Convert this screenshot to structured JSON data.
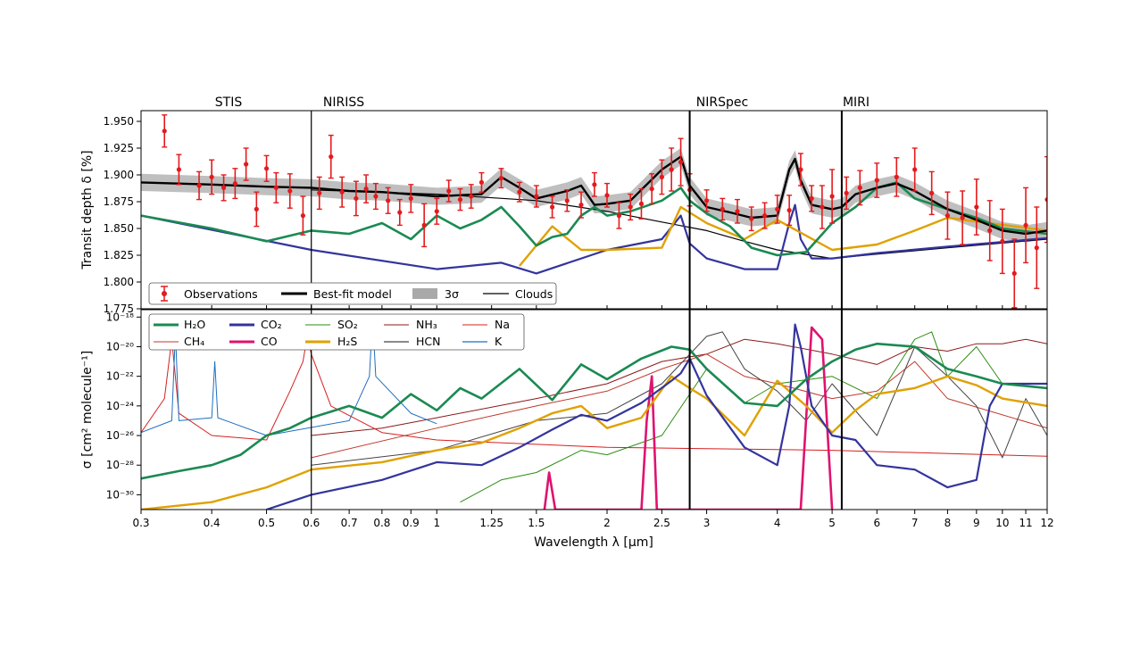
{
  "figure": {
    "instruments": [
      "STIS",
      "NIRISS",
      "NIRSpec",
      "MIRI"
    ],
    "xlabel": "Wavelength λ [µm]"
  },
  "chart_data": [
    {
      "type": "line",
      "panel": "top",
      "ylabel": "Transit depth δ [%]",
      "xscale": "log",
      "xlim": [
        0.3,
        12
      ],
      "ylim": [
        1.775,
        1.96
      ],
      "yticks": [
        "1.775",
        "1.800",
        "1.825",
        "1.850",
        "1.875",
        "1.900",
        "1.925",
        "1.950"
      ],
      "instrument_boundaries": [
        0.6,
        2.8,
        5.2
      ],
      "legend": {
        "position": "bottom-left",
        "entries": [
          "Observations",
          "Best-fit model",
          "3σ",
          "Clouds"
        ]
      },
      "colors": {
        "Observations": "#e41a1c",
        "Best-fit model": "#000000",
        "3σ": "#a9a9a9",
        "Clouds": "#000000",
        "H2O": "#1a8a52",
        "CO2": "#34349e",
        "SO2": "#2e8b12",
        "H2S": "#e0a100",
        "Na": "#d62020",
        "CH4": "#c0392b",
        "NH3": "#8b1a1a",
        "HCN": "#444444",
        "K": "#1f6fbf",
        "CO": "#e0126e"
      },
      "observations": {
        "x": [
          0.33,
          0.35,
          0.38,
          0.4,
          0.42,
          0.44,
          0.46,
          0.48,
          0.5,
          0.52,
          0.55,
          0.58,
          0.62,
          0.65,
          0.68,
          0.72,
          0.75,
          0.78,
          0.82,
          0.86,
          0.9,
          0.95,
          1.0,
          1.05,
          1.1,
          1.15,
          1.2,
          1.3,
          1.4,
          1.5,
          1.6,
          1.7,
          1.8,
          1.9,
          2.0,
          2.1,
          2.2,
          2.3,
          2.4,
          2.5,
          2.6,
          2.7,
          2.8,
          3.0,
          3.2,
          3.4,
          3.6,
          3.8,
          4.0,
          4.2,
          4.4,
          4.6,
          4.8,
          5.0,
          5.3,
          5.6,
          6.0,
          6.5,
          7.0,
          7.5,
          8.0,
          8.5,
          9.0,
          9.5,
          10.0,
          10.5,
          11.0,
          11.5,
          12.0
        ],
        "y": [
          1.941,
          1.905,
          1.89,
          1.898,
          1.888,
          1.892,
          1.91,
          1.868,
          1.906,
          1.888,
          1.885,
          1.862,
          1.883,
          1.917,
          1.884,
          1.878,
          1.887,
          1.88,
          1.876,
          1.865,
          1.878,
          1.853,
          1.866,
          1.885,
          1.877,
          1.88,
          1.893,
          1.897,
          1.884,
          1.88,
          1.87,
          1.876,
          1.872,
          1.891,
          1.881,
          1.862,
          1.87,
          1.873,
          1.887,
          1.898,
          1.905,
          1.912,
          1.886,
          1.876,
          1.868,
          1.866,
          1.859,
          1.862,
          1.868,
          1.867,
          1.905,
          1.878,
          1.87,
          1.88,
          1.883,
          1.888,
          1.895,
          1.898,
          1.905,
          1.883,
          1.862,
          1.86,
          1.87,
          1.848,
          1.838,
          1.808,
          1.853,
          1.832,
          1.877
        ],
        "yerr": [
          0.015,
          0.014,
          0.013,
          0.016,
          0.012,
          0.014,
          0.015,
          0.016,
          0.012,
          0.014,
          0.016,
          0.018,
          0.015,
          0.02,
          0.014,
          0.016,
          0.013,
          0.012,
          0.012,
          0.012,
          0.013,
          0.02,
          0.012,
          0.01,
          0.01,
          0.011,
          0.009,
          0.009,
          0.009,
          0.01,
          0.01,
          0.01,
          0.012,
          0.011,
          0.011,
          0.012,
          0.012,
          0.014,
          0.014,
          0.016,
          0.02,
          0.022,
          0.015,
          0.01,
          0.01,
          0.011,
          0.011,
          0.012,
          0.013,
          0.014,
          0.015,
          0.012,
          0.02,
          0.025,
          0.015,
          0.016,
          0.016,
          0.018,
          0.02,
          0.02,
          0.022,
          0.025,
          0.026,
          0.028,
          0.03,
          0.032,
          0.035,
          0.038,
          0.04
        ]
      },
      "series": [
        {
          "name": "Best-fit model",
          "x": [
            0.3,
            0.4,
            0.5,
            0.6,
            0.7,
            0.8,
            1.0,
            1.2,
            1.3,
            1.4,
            1.5,
            1.7,
            1.8,
            1.9,
            2.0,
            2.2,
            2.5,
            2.7,
            2.8,
            3.0,
            3.3,
            3.6,
            4.0,
            4.2,
            4.3,
            4.4,
            4.6,
            5.0,
            5.2,
            5.5,
            6.0,
            6.5,
            7.0,
            8.0,
            9.0,
            10.0,
            11.0,
            12.0
          ],
          "y": [
            1.893,
            1.891,
            1.889,
            1.888,
            1.885,
            1.884,
            1.88,
            1.882,
            1.898,
            1.888,
            1.878,
            1.885,
            1.89,
            1.872,
            1.873,
            1.876,
            1.905,
            1.917,
            1.89,
            1.87,
            1.865,
            1.86,
            1.862,
            1.905,
            1.915,
            1.895,
            1.872,
            1.868,
            1.87,
            1.882,
            1.888,
            1.892,
            1.885,
            1.868,
            1.858,
            1.848,
            1.845,
            1.848
          ]
        },
        {
          "name": "Clouds",
          "x": [
            0.6,
            1.0,
            1.5,
            2.0,
            2.5,
            3.0,
            3.5,
            4.0,
            5.0,
            6.0,
            8.0,
            12.0
          ],
          "y": [
            1.886,
            1.882,
            1.876,
            1.866,
            1.856,
            1.848,
            1.838,
            1.83,
            1.822,
            1.826,
            1.832,
            1.84
          ]
        },
        {
          "name": "H2O",
          "x": [
            0.3,
            0.4,
            0.5,
            0.6,
            0.7,
            0.8,
            0.9,
            1.0,
            1.1,
            1.2,
            1.3,
            1.4,
            1.5,
            1.6,
            1.7,
            1.8,
            1.9,
            2.0,
            2.2,
            2.5,
            2.7,
            2.8,
            3.0,
            3.3,
            3.6,
            4.0,
            4.5,
            5.0,
            5.5,
            6.0,
            6.5,
            7.0,
            8.0,
            9.0,
            10.0,
            12.0
          ],
          "y": [
            1.862,
            1.85,
            1.838,
            1.848,
            1.845,
            1.855,
            1.84,
            1.862,
            1.85,
            1.858,
            1.87,
            1.852,
            1.834,
            1.842,
            1.845,
            1.862,
            1.87,
            1.862,
            1.866,
            1.876,
            1.888,
            1.876,
            1.864,
            1.852,
            1.832,
            1.825,
            1.828,
            1.855,
            1.87,
            1.888,
            1.893,
            1.878,
            1.868,
            1.86,
            1.85,
            1.845
          ]
        },
        {
          "name": "CO2",
          "x": [
            0.3,
            0.6,
            1.0,
            1.3,
            1.5,
            2.0,
            2.5,
            2.7,
            2.8,
            3.0,
            3.5,
            4.0,
            4.2,
            4.3,
            4.4,
            4.6,
            5.0,
            6.0,
            8.0,
            12.0
          ],
          "y": [
            1.862,
            1.83,
            1.812,
            1.818,
            1.808,
            1.83,
            1.84,
            1.862,
            1.836,
            1.822,
            1.812,
            1.812,
            1.855,
            1.872,
            1.84,
            1.822,
            1.822,
            1.827,
            1.833,
            1.841
          ]
        },
        {
          "name": "H2S",
          "x": [
            1.4,
            1.6,
            1.8,
            2.0,
            2.5,
            2.7,
            3.0,
            3.5,
            4.0,
            5.0,
            6.0,
            7.0,
            8.0,
            12.0
          ],
          "y": [
            1.815,
            1.852,
            1.83,
            1.83,
            1.832,
            1.87,
            1.855,
            1.84,
            1.858,
            1.83,
            1.835,
            1.848,
            1.86,
            1.848
          ]
        }
      ]
    },
    {
      "type": "line",
      "panel": "bottom",
      "ylabel": "σ [cm² molecule⁻¹]",
      "xscale": "log",
      "yscale": "log",
      "xlim": [
        0.3,
        12
      ],
      "ylim": [
        -31,
        -17.5
      ],
      "ylim_note": "log10 of cross section in cm2 per molecule",
      "yticks": [
        "10⁻¹⁸",
        "10⁻²⁰",
        "10⁻²²",
        "10⁻²⁴",
        "10⁻²⁶",
        "10⁻²⁸",
        "10⁻³⁰"
      ],
      "xticks": [
        "0.3",
        "0.4",
        "0.5",
        "0.6",
        "0.7",
        "0.8",
        "0.9",
        "1",
        "1.25",
        "1.5",
        "2",
        "2.5",
        "3",
        "4",
        "5",
        "6",
        "7",
        "8",
        "9",
        "10",
        "11",
        "12"
      ],
      "legend": {
        "position": "top-left",
        "entries": [
          "H₂O",
          "CO₂",
          "SO₂",
          "NH₃",
          "Na",
          "CH₄",
          "CO",
          "H₂S",
          "HCN",
          "K"
        ]
      },
      "series": [
        {
          "name": "H2O",
          "x": [
            0.3,
            0.35,
            0.4,
            0.45,
            0.5,
            0.55,
            0.6,
            0.7,
            0.8,
            0.9,
            1.0,
            1.1,
            1.2,
            1.4,
            1.6,
            1.8,
            2.0,
            2.3,
            2.6,
            2.8,
            3.0,
            3.5,
            4.0,
            4.5,
            5.0,
            5.5,
            6.0,
            7.0,
            8.0,
            9.0,
            10.0,
            12.0
          ],
          "y": [
            -28.9,
            -28.4,
            -28.0,
            -27.3,
            -26.0,
            -25.5,
            -24.8,
            -24.0,
            -24.8,
            -23.2,
            -24.3,
            -22.8,
            -23.5,
            -21.5,
            -23.6,
            -21.2,
            -22.2,
            -20.8,
            -20.0,
            -20.2,
            -21.5,
            -23.8,
            -24.0,
            -22.2,
            -21.0,
            -20.2,
            -19.8,
            -20.0,
            -21.5,
            -22.0,
            -22.5,
            -22.8
          ]
        },
        {
          "name": "CO2",
          "x": [
            0.5,
            0.6,
            0.8,
            1.0,
            1.2,
            1.4,
            1.6,
            1.8,
            2.0,
            2.3,
            2.6,
            2.7,
            2.8,
            3.0,
            3.5,
            4.0,
            4.2,
            4.3,
            4.4,
            4.6,
            5.0,
            5.5,
            6.0,
            7.0,
            8.0,
            9.0,
            9.5,
            10.0,
            12.0
          ],
          "y": [
            -31.0,
            -30.0,
            -29.0,
            -27.8,
            -28.0,
            -26.8,
            -25.6,
            -24.6,
            -25.0,
            -23.8,
            -22.3,
            -21.8,
            -20.8,
            -23.3,
            -26.8,
            -28.0,
            -24.0,
            -18.5,
            -20.0,
            -24.0,
            -26.0,
            -26.3,
            -28.0,
            -28.3,
            -29.5,
            -29.0,
            -24.0,
            -22.5,
            -22.5
          ]
        },
        {
          "name": "SO2",
          "x": [
            1.1,
            1.3,
            1.5,
            1.8,
            2.0,
            2.5,
            3.0,
            3.5,
            4.0,
            5.0,
            6.0,
            7.0,
            7.5,
            8.0,
            9.0,
            10.0,
            12.0
          ],
          "y": [
            -30.5,
            -29.0,
            -28.5,
            -27.0,
            -27.3,
            -26.0,
            -21.5,
            -23.8,
            -22.5,
            -22.0,
            -23.5,
            -19.5,
            -19.0,
            -22.0,
            -20.0,
            -22.5,
            -22.5
          ]
        },
        {
          "name": "H2S",
          "x": [
            0.3,
            0.4,
            0.5,
            0.6,
            0.8,
            1.0,
            1.2,
            1.4,
            1.6,
            1.8,
            2.0,
            2.3,
            2.6,
            2.8,
            3.0,
            3.5,
            4.0,
            4.5,
            5.0,
            5.5,
            6.0,
            7.0,
            8.0,
            9.0,
            10.0,
            12.0
          ],
          "y": [
            -31.0,
            -30.5,
            -29.5,
            -28.3,
            -27.8,
            -27.0,
            -26.5,
            -25.5,
            -24.5,
            -24.0,
            -25.5,
            -24.8,
            -22.0,
            -22.8,
            -23.5,
            -26.0,
            -22.3,
            -24.0,
            -25.8,
            -24.3,
            -23.2,
            -22.8,
            -22.0,
            -22.6,
            -23.5,
            -24.0
          ]
        },
        {
          "name": "CO",
          "x": [
            1.55,
            1.58,
            1.62,
            2.3,
            2.35,
            2.4,
            2.45,
            4.4,
            4.6,
            4.8,
            5.0
          ],
          "y": [
            -31.0,
            -28.5,
            -31.0,
            -31.0,
            -25.0,
            -22.0,
            -31.0,
            -31.0,
            -18.7,
            -19.5,
            -31.0
          ]
        },
        {
          "name": "Na",
          "x": [
            0.3,
            0.33,
            0.34,
            0.35,
            0.4,
            0.5,
            0.55,
            0.58,
            0.59,
            0.6,
            0.65,
            0.8,
            1.0,
            2.0,
            5.0,
            12.0
          ],
          "y": [
            -25.8,
            -23.5,
            -19.5,
            -24.5,
            -26.0,
            -26.3,
            -23.0,
            -21.0,
            -19.3,
            -20.5,
            -24.0,
            -25.8,
            -26.3,
            -26.8,
            -27.0,
            -27.4
          ]
        },
        {
          "name": "K",
          "x": [
            0.3,
            0.34,
            0.345,
            0.35,
            0.4,
            0.405,
            0.41,
            0.5,
            0.7,
            0.76,
            0.77,
            0.78,
            0.9,
            1.0
          ],
          "y": [
            -25.8,
            -25.0,
            -19.0,
            -25.0,
            -24.8,
            -21.0,
            -24.8,
            -26.0,
            -25.0,
            -22.0,
            -18.0,
            -22.0,
            -24.5,
            -25.2
          ]
        },
        {
          "name": "NH3",
          "x": [
            0.6,
            0.8,
            1.0,
            1.5,
            2.0,
            2.5,
            3.0,
            3.5,
            4.0,
            5.0,
            6.0,
            7.0,
            8.0,
            9.0,
            10.0,
            11.0,
            12.0
          ],
          "y": [
            -26.0,
            -25.5,
            -24.8,
            -23.5,
            -22.5,
            -21.0,
            -20.5,
            -19.5,
            -19.8,
            -20.5,
            -21.2,
            -20.0,
            -20.3,
            -19.8,
            -19.8,
            -19.5,
            -19.8
          ]
        },
        {
          "name": "CH4",
          "x": [
            0.6,
            1.0,
            1.5,
            2.0,
            2.5,
            3.0,
            3.5,
            4.0,
            5.0,
            6.0,
            7.0,
            8.0,
            12.0
          ],
          "y": [
            -27.5,
            -25.5,
            -24.0,
            -23.0,
            -21.5,
            -20.5,
            -22.0,
            -22.5,
            -23.5,
            -23.0,
            -21.0,
            -23.5,
            -25.5
          ]
        },
        {
          "name": "HCN",
          "x": [
            0.6,
            1.0,
            1.5,
            2.0,
            2.5,
            3.0,
            3.2,
            3.5,
            4.0,
            4.5,
            5.0,
            6.0,
            7.0,
            8.0,
            9.0,
            10.0,
            11.0,
            12.0
          ],
          "y": [
            -28.0,
            -27.0,
            -25.0,
            -24.5,
            -22.5,
            -19.3,
            -19.0,
            -21.5,
            -23.0,
            -25.0,
            -22.5,
            -26.0,
            -20.0,
            -22.0,
            -24.0,
            -27.5,
            -23.5,
            -26.0
          ]
        }
      ]
    }
  ]
}
